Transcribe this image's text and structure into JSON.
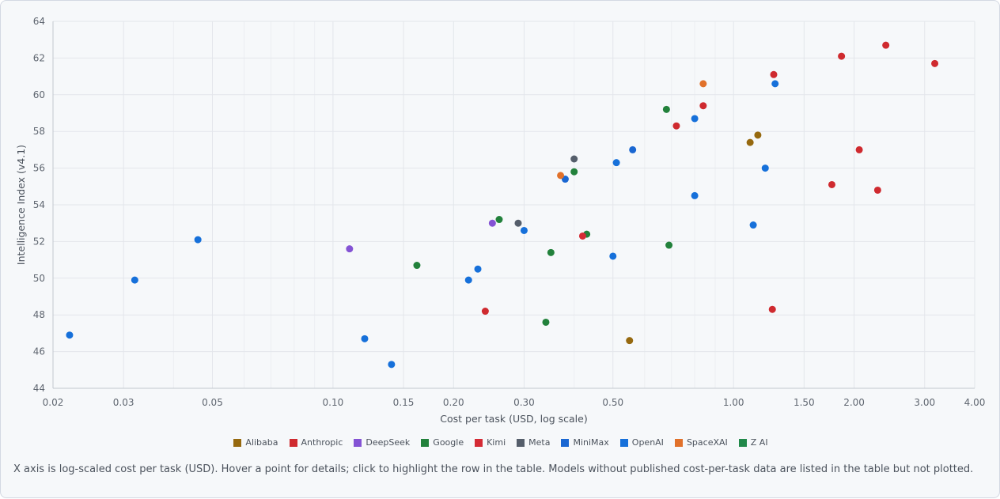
{
  "chart_data": {
    "type": "scatter",
    "xlabel": "Cost per task (USD, log scale)",
    "ylabel": "Intelligence Index (v4.1)",
    "xscale": "log",
    "xlim": [
      0.02,
      4.0
    ],
    "ylim": [
      44,
      64
    ],
    "x_ticks": [
      0.02,
      0.03,
      0.05,
      0.1,
      0.15,
      0.2,
      0.3,
      0.5,
      1.0,
      1.5,
      2.0,
      3.0,
      4.0
    ],
    "x_tick_labels": [
      "0.02",
      "0.03",
      "0.05",
      "0.10",
      "0.15",
      "0.20",
      "0.30",
      "0.50",
      "1.00",
      "1.50",
      "2.00",
      "3.00",
      "4.00"
    ],
    "y_ticks": [
      44,
      46,
      48,
      50,
      52,
      54,
      56,
      58,
      60,
      62,
      64
    ],
    "grid": true,
    "legend_position": "bottom",
    "series": [
      {
        "name": "Alibaba",
        "color": "#96690f",
        "points": [
          [
            0.55,
            46.6
          ],
          [
            1.1,
            57.4
          ],
          [
            1.15,
            57.8
          ]
        ]
      },
      {
        "name": "Anthropic",
        "color": "#cf2a2f",
        "points": [
          [
            0.24,
            48.2
          ],
          [
            0.72,
            58.3
          ],
          [
            0.84,
            59.4
          ],
          [
            1.26,
            61.1
          ],
          [
            1.25,
            48.3
          ],
          [
            1.76,
            55.1
          ],
          [
            1.86,
            62.1
          ],
          [
            2.06,
            57.0
          ],
          [
            2.29,
            54.8
          ],
          [
            2.4,
            62.7
          ],
          [
            3.18,
            61.7
          ]
        ]
      },
      {
        "name": "DeepSeek",
        "color": "#8453d4",
        "points": [
          [
            0.11,
            51.6
          ],
          [
            0.25,
            53.0
          ]
        ]
      },
      {
        "name": "Google",
        "color": "#22813b",
        "points": [
          [
            0.162,
            50.7
          ],
          [
            0.26,
            53.2
          ],
          [
            0.34,
            47.6
          ],
          [
            0.35,
            51.4
          ],
          [
            0.4,
            55.8
          ],
          [
            0.43,
            52.4
          ],
          [
            0.68,
            59.2
          ],
          [
            0.69,
            51.8
          ]
        ]
      },
      {
        "name": "Kimi",
        "color": "#d42b35",
        "points": [
          [
            0.42,
            52.3
          ]
        ]
      },
      {
        "name": "Meta",
        "color": "#555e6b",
        "points": [
          [
            0.29,
            53.0
          ],
          [
            0.4,
            56.5
          ]
        ]
      },
      {
        "name": "MiniMax",
        "color": "#1a67d2",
        "points": [
          [
            0.38,
            55.4
          ],
          [
            0.56,
            57.0
          ]
        ]
      },
      {
        "name": "OpenAI",
        "color": "#1670da",
        "points": [
          [
            0.022,
            46.9
          ],
          [
            0.032,
            49.9
          ],
          [
            0.046,
            52.1
          ],
          [
            0.12,
            46.7
          ],
          [
            0.14,
            45.3
          ],
          [
            0.218,
            49.9
          ],
          [
            0.23,
            50.5
          ],
          [
            0.3,
            52.6
          ],
          [
            0.5,
            51.2
          ],
          [
            0.51,
            56.3
          ],
          [
            0.8,
            54.5
          ],
          [
            0.8,
            58.7
          ],
          [
            1.12,
            52.9
          ],
          [
            1.2,
            56.0
          ],
          [
            1.27,
            60.6
          ]
        ]
      },
      {
        "name": "SpaceXAI",
        "color": "#e1712a",
        "points": [
          [
            0.37,
            55.6
          ],
          [
            0.84,
            60.6
          ]
        ]
      },
      {
        "name": "Z AI",
        "color": "#21894a",
        "points": []
      }
    ]
  },
  "footnote": "X axis is log-scaled cost per task (USD). Hover a point for details; click to highlight the row in the table. Models without published cost-per-task data are listed in the table but not plotted."
}
